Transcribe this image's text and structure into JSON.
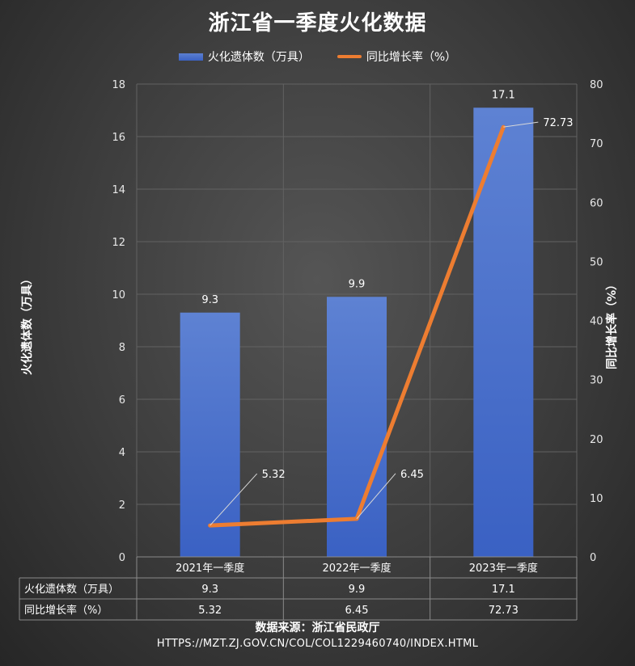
{
  "chart_data": {
    "type": "bar",
    "title": "浙江省一季度火化数据",
    "categories": [
      "2021年一季度",
      "2022年一季度",
      "2023年一季度"
    ],
    "series": [
      {
        "name": "火化遗体数（万具）",
        "type": "bar",
        "axis": "left",
        "values": [
          9.3,
          9.9,
          17.1
        ],
        "color": "#4472c4"
      },
      {
        "name": "同比增长率（%）",
        "type": "line",
        "axis": "right",
        "values": [
          5.32,
          6.45,
          72.73
        ],
        "color": "#ed7d31"
      }
    ],
    "ylabel": "火化遗体数（万具）",
    "y2label": "同比增长率（%）",
    "ylim": [
      0,
      18
    ],
    "y2lim": [
      0,
      80
    ],
    "yticks": [
      0,
      2,
      4,
      6,
      8,
      10,
      12,
      14,
      16,
      18
    ],
    "y2ticks": [
      0,
      10,
      20,
      30,
      40,
      50,
      60,
      70,
      80
    ],
    "bar_labels": [
      "9.3",
      "9.9",
      "17.1"
    ],
    "line_labels": [
      "5.32",
      "6.45",
      "72.73"
    ],
    "legend_position": "top",
    "grid": true,
    "data_table": {
      "rows": [
        {
          "label": "火化遗体数（万具）",
          "values": [
            "9.3",
            "9.9",
            "17.1"
          ]
        },
        {
          "label": "同比增长率（%）",
          "values": [
            "5.32",
            "6.45",
            "72.73"
          ]
        }
      ]
    }
  },
  "source": "数据来源：浙江省民政厅",
  "url": "HTTPS://MZT.ZJ.GOV.CN/COL/COL1229460740/INDEX.HTML"
}
